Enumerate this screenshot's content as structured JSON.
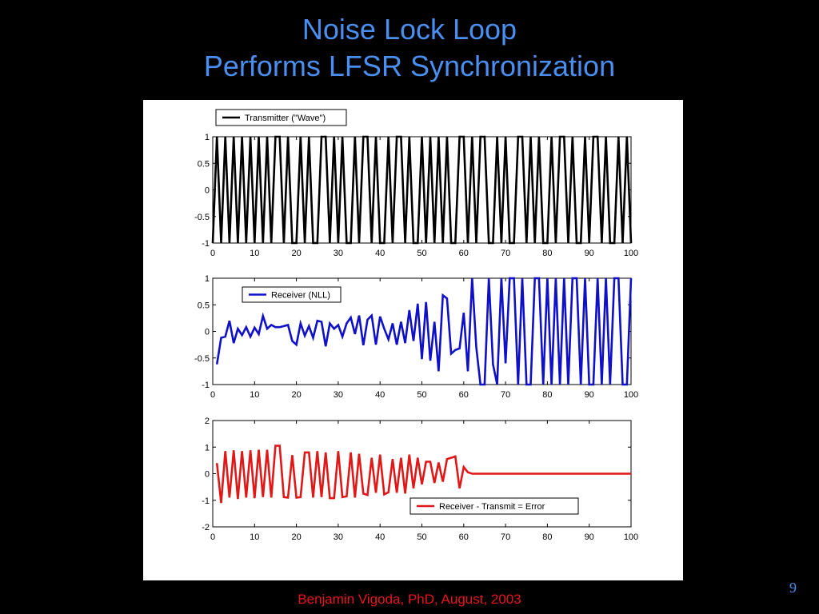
{
  "slide": {
    "title_line1": "Noise Lock Loop",
    "title_line2": "Performs LFSR Synchronization",
    "footer": "Benjamin Vigoda, PhD, August, 2003",
    "page_number": "9",
    "title_color": "#4a8ff0",
    "footer_color": "#e8141a"
  },
  "chart_data": [
    {
      "type": "line",
      "xlim": [
        0,
        100
      ],
      "ylim": [
        -1,
        1
      ],
      "xticks": [
        0,
        10,
        20,
        30,
        40,
        50,
        60,
        70,
        80,
        90,
        100
      ],
      "yticks": [
        1,
        0.5,
        0,
        -0.5,
        -1
      ],
      "ytick_labels": [
        "1",
        "0.5",
        "0",
        "-0.5",
        "-1"
      ],
      "legend_position": "top-left",
      "series": [
        {
          "name": "Transmitter (\"Wave\")",
          "color": "#000000",
          "x": [
            0,
            1,
            2,
            3,
            4,
            5,
            6,
            7,
            8,
            9,
            10,
            11,
            12,
            13,
            14,
            15,
            16,
            17,
            18,
            19,
            20,
            21,
            22,
            23,
            24,
            25,
            26,
            27,
            28,
            29,
            30,
            31,
            32,
            33,
            34,
            35,
            36,
            37,
            38,
            39,
            40,
            41,
            42,
            43,
            44,
            45,
            46,
            47,
            48,
            49,
            50,
            51,
            52,
            53,
            54,
            55,
            56,
            57,
            58,
            59,
            60,
            61,
            62,
            63,
            64,
            65,
            66,
            67,
            68,
            69,
            70,
            71,
            72,
            73,
            74,
            75,
            76,
            77,
            78,
            79,
            80,
            81,
            82,
            83,
            84,
            85,
            86,
            87,
            88,
            89,
            90,
            91,
            92,
            93,
            94,
            95,
            96,
            97,
            98,
            99,
            100
          ],
          "y": [
            -1,
            1,
            -1,
            1,
            -1,
            1,
            -1,
            1,
            -1,
            1,
            -1,
            1,
            -1,
            1,
            -1,
            1,
            1,
            -1,
            1,
            -1,
            -1,
            1,
            -1,
            1,
            -1,
            -1,
            1,
            1,
            -1,
            1,
            -1,
            1,
            -1,
            -1,
            1,
            -1,
            1,
            1,
            -1,
            1,
            -1,
            -1,
            1,
            -1,
            1,
            1,
            -1,
            1,
            -1,
            -1,
            1,
            -1,
            1,
            -1,
            1,
            -1,
            1,
            -1,
            -1,
            1,
            1,
            -1,
            1,
            -1,
            1,
            1,
            -1,
            -1,
            1,
            -1,
            1,
            -1,
            -1,
            1,
            1,
            -1,
            1,
            -1,
            1,
            -1,
            -1,
            1,
            -1,
            1,
            1,
            -1,
            1,
            -1,
            -1,
            1,
            -1,
            1,
            1,
            -1,
            1,
            -1,
            -1,
            1,
            -1,
            1,
            -1
          ]
        }
      ]
    },
    {
      "type": "line",
      "xlim": [
        0,
        100
      ],
      "ylim": [
        -1,
        1
      ],
      "xticks": [
        0,
        10,
        20,
        30,
        40,
        50,
        60,
        70,
        80,
        90,
        100
      ],
      "yticks": [
        1,
        0.5,
        0,
        -0.5,
        -1
      ],
      "ytick_labels": [
        "1",
        "0.5",
        "0",
        "-0.5",
        "-1"
      ],
      "legend_position": "top-left",
      "series": [
        {
          "name": "Receiver (NLL)",
          "color": "#1010c8",
          "x": [
            1,
            2,
            3,
            4,
            5,
            6,
            7,
            8,
            9,
            10,
            11,
            12,
            13,
            14,
            15,
            16,
            17,
            18,
            19,
            20,
            21,
            22,
            23,
            24,
            25,
            26,
            27,
            28,
            29,
            30,
            31,
            32,
            33,
            34,
            35,
            36,
            37,
            38,
            39,
            40,
            41,
            42,
            43,
            44,
            45,
            46,
            47,
            48,
            49,
            50,
            51,
            52,
            53,
            54,
            55,
            56,
            57,
            58,
            59,
            60,
            61,
            62,
            63,
            64,
            65,
            66,
            67,
            68,
            69,
            70,
            71,
            72,
            73,
            74,
            75,
            76,
            77,
            78,
            79,
            80,
            81,
            82,
            83,
            84,
            85,
            86,
            87,
            88,
            89,
            90,
            91,
            92,
            93,
            94,
            95,
            96,
            97,
            98,
            99,
            100
          ],
          "y": [
            -0.62,
            -0.12,
            -0.1,
            0.2,
            -0.22,
            0.05,
            -0.07,
            0.08,
            -0.1,
            0.07,
            -0.05,
            0.29,
            0.05,
            0.12,
            0.08,
            0.08,
            0.1,
            0.12,
            -0.18,
            -0.25,
            0.15,
            -0.08,
            0.1,
            -0.12,
            0.2,
            0.18,
            -0.28,
            0.15,
            0.05,
            0.12,
            -0.1,
            0.15,
            0.26,
            -0.05,
            0.3,
            -0.26,
            0.22,
            0.3,
            -0.25,
            0.28,
            0.05,
            -0.15,
            0.15,
            -0.25,
            0.18,
            -0.22,
            0.4,
            -0.18,
            0.52,
            -0.52,
            0.55,
            -0.55,
            0.18,
            -0.75,
            0.68,
            0.62,
            -0.42,
            -0.35,
            -0.32,
            0.35,
            -0.75,
            1,
            -0.3,
            -1,
            -1,
            1,
            -0.62,
            -1,
            1,
            -0.6,
            1,
            1,
            -1,
            1,
            -1,
            -1,
            1,
            1,
            -1,
            1,
            -1,
            1,
            -1,
            1,
            -1,
            1,
            1,
            -1,
            1,
            -1,
            -1,
            1,
            -1,
            1,
            -1,
            1,
            1,
            -1,
            -1,
            1
          ]
        }
      ]
    },
    {
      "type": "line",
      "xlim": [
        0,
        100
      ],
      "ylim": [
        -2,
        2
      ],
      "xticks": [
        0,
        10,
        20,
        30,
        40,
        50,
        60,
        70,
        80,
        90,
        100
      ],
      "yticks": [
        2,
        1,
        0,
        -1,
        -2
      ],
      "ytick_labels": [
        "2",
        "1",
        "0",
        "-1",
        "-2"
      ],
      "legend_position": "bottom-right",
      "series": [
        {
          "name": "Receiver - Transmit = Error",
          "color": "#e01818",
          "x": [
            1,
            2,
            3,
            4,
            5,
            6,
            7,
            8,
            9,
            10,
            11,
            12,
            13,
            14,
            15,
            16,
            17,
            18,
            19,
            20,
            21,
            22,
            23,
            24,
            25,
            26,
            27,
            28,
            29,
            30,
            31,
            32,
            33,
            34,
            35,
            36,
            37,
            38,
            39,
            40,
            41,
            42,
            43,
            44,
            45,
            46,
            47,
            48,
            49,
            50,
            51,
            52,
            53,
            54,
            55,
            56,
            57,
            58,
            59,
            60,
            61,
            62,
            63,
            64,
            65,
            66,
            67,
            68,
            69,
            70,
            71,
            72,
            73,
            74,
            75,
            76,
            77,
            78,
            79,
            80,
            81,
            82,
            83,
            84,
            85,
            86,
            87,
            88,
            89,
            90,
            91,
            92,
            93,
            94,
            95,
            96,
            97,
            98,
            99,
            100
          ],
          "y": [
            0.4,
            -1.1,
            0.85,
            -0.9,
            0.88,
            -0.95,
            0.85,
            -0.9,
            0.88,
            -0.92,
            0.9,
            -0.88,
            0.9,
            -0.9,
            1.05,
            1.05,
            -0.88,
            -0.9,
            0.7,
            -0.9,
            -0.88,
            0.8,
            0.8,
            -0.9,
            0.85,
            -0.88,
            0.8,
            -0.92,
            -0.92,
            0.85,
            -0.88,
            -0.85,
            0.8,
            -0.9,
            0.75,
            -0.75,
            -0.8,
            0.6,
            -0.72,
            0.72,
            -0.78,
            -0.7,
            0.55,
            -0.72,
            0.6,
            -0.75,
            0.72,
            -0.55,
            0.6,
            -0.4,
            0.45,
            0.45,
            -0.35,
            0.42,
            -0.3,
            0.55,
            0.6,
            0.65,
            -0.55,
            0.25,
            0.05,
            0,
            0,
            0,
            0,
            0,
            0,
            0,
            0,
            0,
            0,
            0,
            0,
            0,
            0,
            0,
            0,
            0,
            0,
            0,
            0,
            0,
            0,
            0,
            0,
            0,
            0,
            0,
            0,
            0,
            0,
            0,
            0,
            0,
            0,
            0,
            0,
            0,
            0,
            0
          ]
        }
      ]
    }
  ]
}
